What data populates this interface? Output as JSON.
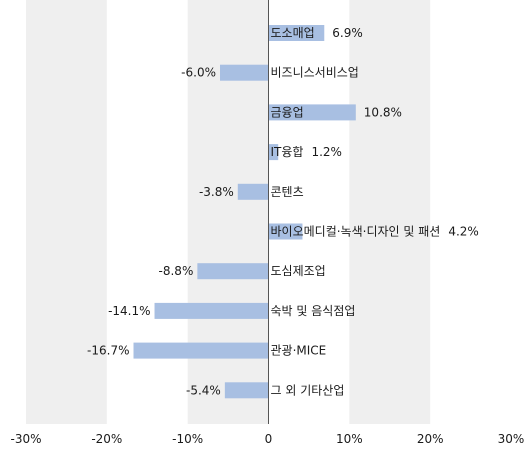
{
  "chart_data": {
    "type": "bar",
    "orientation": "horizontal",
    "categories": [
      "도소매업",
      "비즈니스서비스업",
      "금융업",
      "IT융합",
      "콘텐츠",
      "바이오메디컬·녹색·디자인 및 패션",
      "도심제조업",
      "숙박 및 음식점업",
      "관광·MICE",
      "그 외 기타산업"
    ],
    "values": [
      6.9,
      -6.0,
      10.8,
      1.2,
      -3.8,
      4.2,
      -8.8,
      -14.1,
      -16.7,
      -5.4
    ],
    "value_labels": [
      "6.9%",
      "-6.0%",
      "10.8%",
      "1.2%",
      "-3.8%",
      "4.2%",
      "-8.8%",
      "-14.1%",
      "-16.7%",
      "-5.4%"
    ],
    "xlim": [
      -30,
      30
    ],
    "xticks": [
      -30,
      -20,
      -10,
      0,
      10,
      20,
      30
    ],
    "xtick_labels": [
      "-30%",
      "-20%",
      "-10%",
      "0",
      "10%",
      "20%",
      "30%"
    ],
    "grid": "alternating vertical bands",
    "bar_color": "#a8bfe2",
    "band_color": "#efefef"
  }
}
